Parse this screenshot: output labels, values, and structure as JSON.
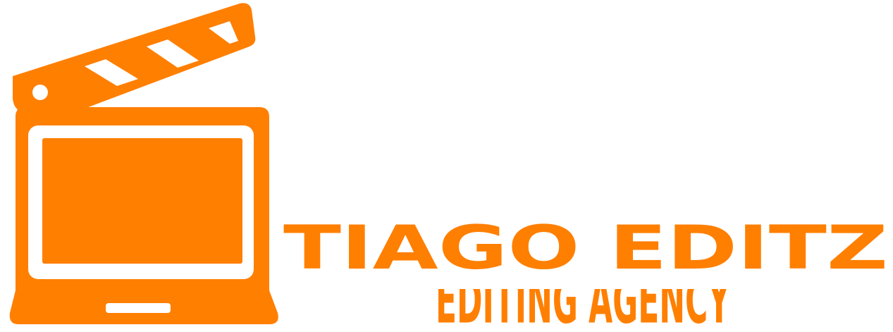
{
  "brand": {
    "name": "TIAGO EDITZ",
    "tagline": "EDITING AGENCY",
    "accent_color": "#ff7f00",
    "background_color": "#ffffff"
  },
  "emblem": {
    "icon": "clapperboard-laptop-icon"
  }
}
